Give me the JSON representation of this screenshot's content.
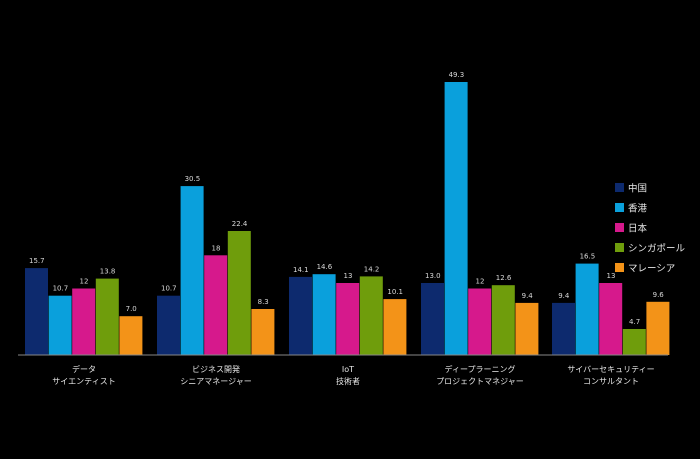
{
  "chart_data": {
    "type": "bar",
    "categories": [
      [
        "データ",
        "サイエンティスト"
      ],
      [
        "ビジネス開発",
        "シニアマネージャー"
      ],
      [
        "IoT",
        "技術者"
      ],
      [
        "ディープラーニング",
        "プロジェクトマネジャー"
      ],
      [
        "サイバーセキュリティー",
        "コンサルタント"
      ]
    ],
    "series": [
      {
        "name": "中国",
        "color": "#0d2a6e",
        "values": [
          15.7,
          10.7,
          14.1,
          13.0,
          9.4
        ],
        "labels": [
          "15.7",
          "10.7",
          "14.1",
          "13.0",
          "9.4"
        ]
      },
      {
        "name": "香港",
        "color": "#0aa0dc",
        "values": [
          10.7,
          30.5,
          14.6,
          49.3,
          16.5
        ],
        "labels": [
          "10.7",
          "30.5",
          "14.6",
          "49.3",
          "16.5"
        ]
      },
      {
        "name": "日本",
        "color": "#d6198c",
        "values": [
          12.0,
          18.0,
          13.0,
          12.0,
          13.0
        ],
        "labels": [
          "12",
          "18",
          "13",
          "12",
          "13"
        ]
      },
      {
        "name": "シンガポール",
        "color": "#6f9d0c",
        "values": [
          13.8,
          22.4,
          14.2,
          12.6,
          4.7
        ],
        "labels": [
          "13.8",
          "22.4",
          "14.2",
          "12.6",
          "4.7"
        ]
      },
      {
        "name": "マレーシア",
        "color": "#f39318",
        "values": [
          7.0,
          8.3,
          10.1,
          9.4,
          9.6
        ],
        "labels": [
          "7.0",
          "8.3",
          "10.1",
          "9.4",
          "9.6"
        ]
      }
    ],
    "legend_position": "right",
    "ylim": [
      0,
      50
    ],
    "grid": false
  }
}
